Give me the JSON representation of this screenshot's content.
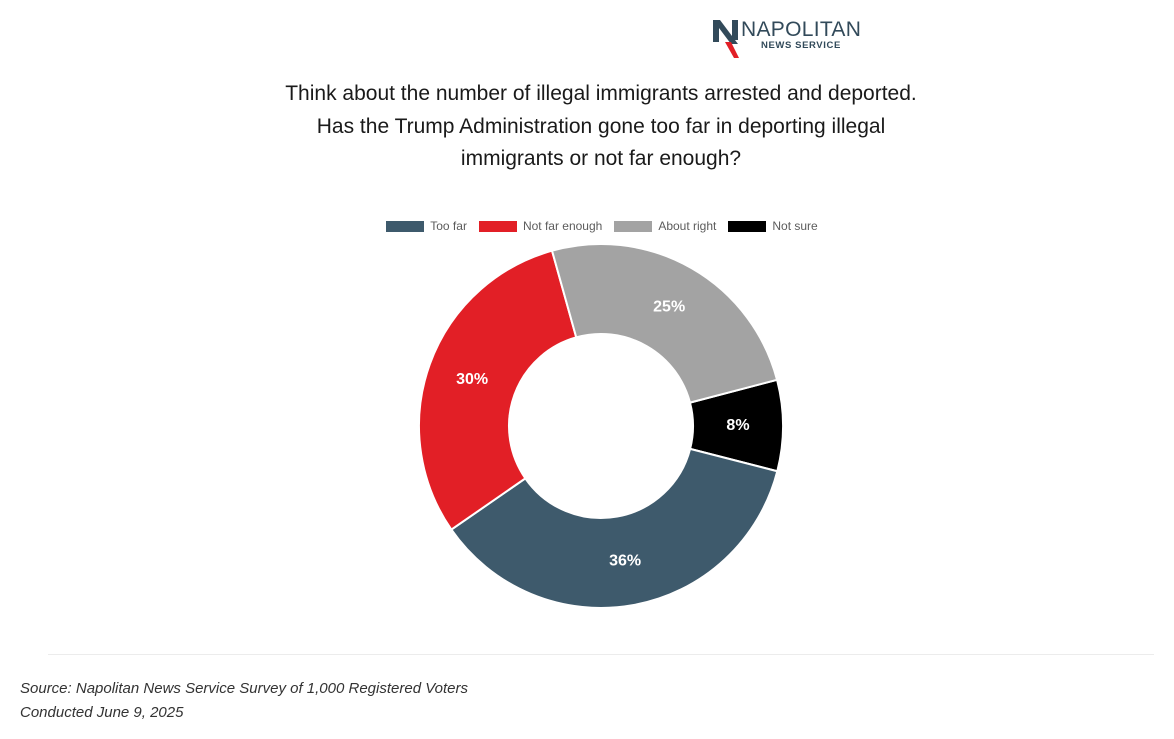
{
  "logo": {
    "name": "NAPOLITAN",
    "subtitle": "NEWS SERVICE",
    "colors": {
      "navy": "#324a5a",
      "red": "#e21f26"
    }
  },
  "chart_data": {
    "type": "pie",
    "variant": "donut",
    "title": "Think about the number of illegal immigrants arrested and deported. Has the Trump Administration gone too far in deporting illegal immigrants or not far enough?",
    "categories": [
      "Too far",
      "Not far enough",
      "About right",
      "Not sure"
    ],
    "values": [
      36,
      30,
      25,
      8
    ],
    "labels": [
      "36%",
      "30%",
      "25%",
      "8%"
    ],
    "colors": [
      "#3e5a6c",
      "#e21f26",
      "#a3a3a3",
      "#000000"
    ],
    "legend": "top"
  },
  "footer": {
    "source": "Source: Napolitan News Service Survey of 1,000 Registered Voters",
    "conducted": "Conducted June 9, 2025"
  }
}
